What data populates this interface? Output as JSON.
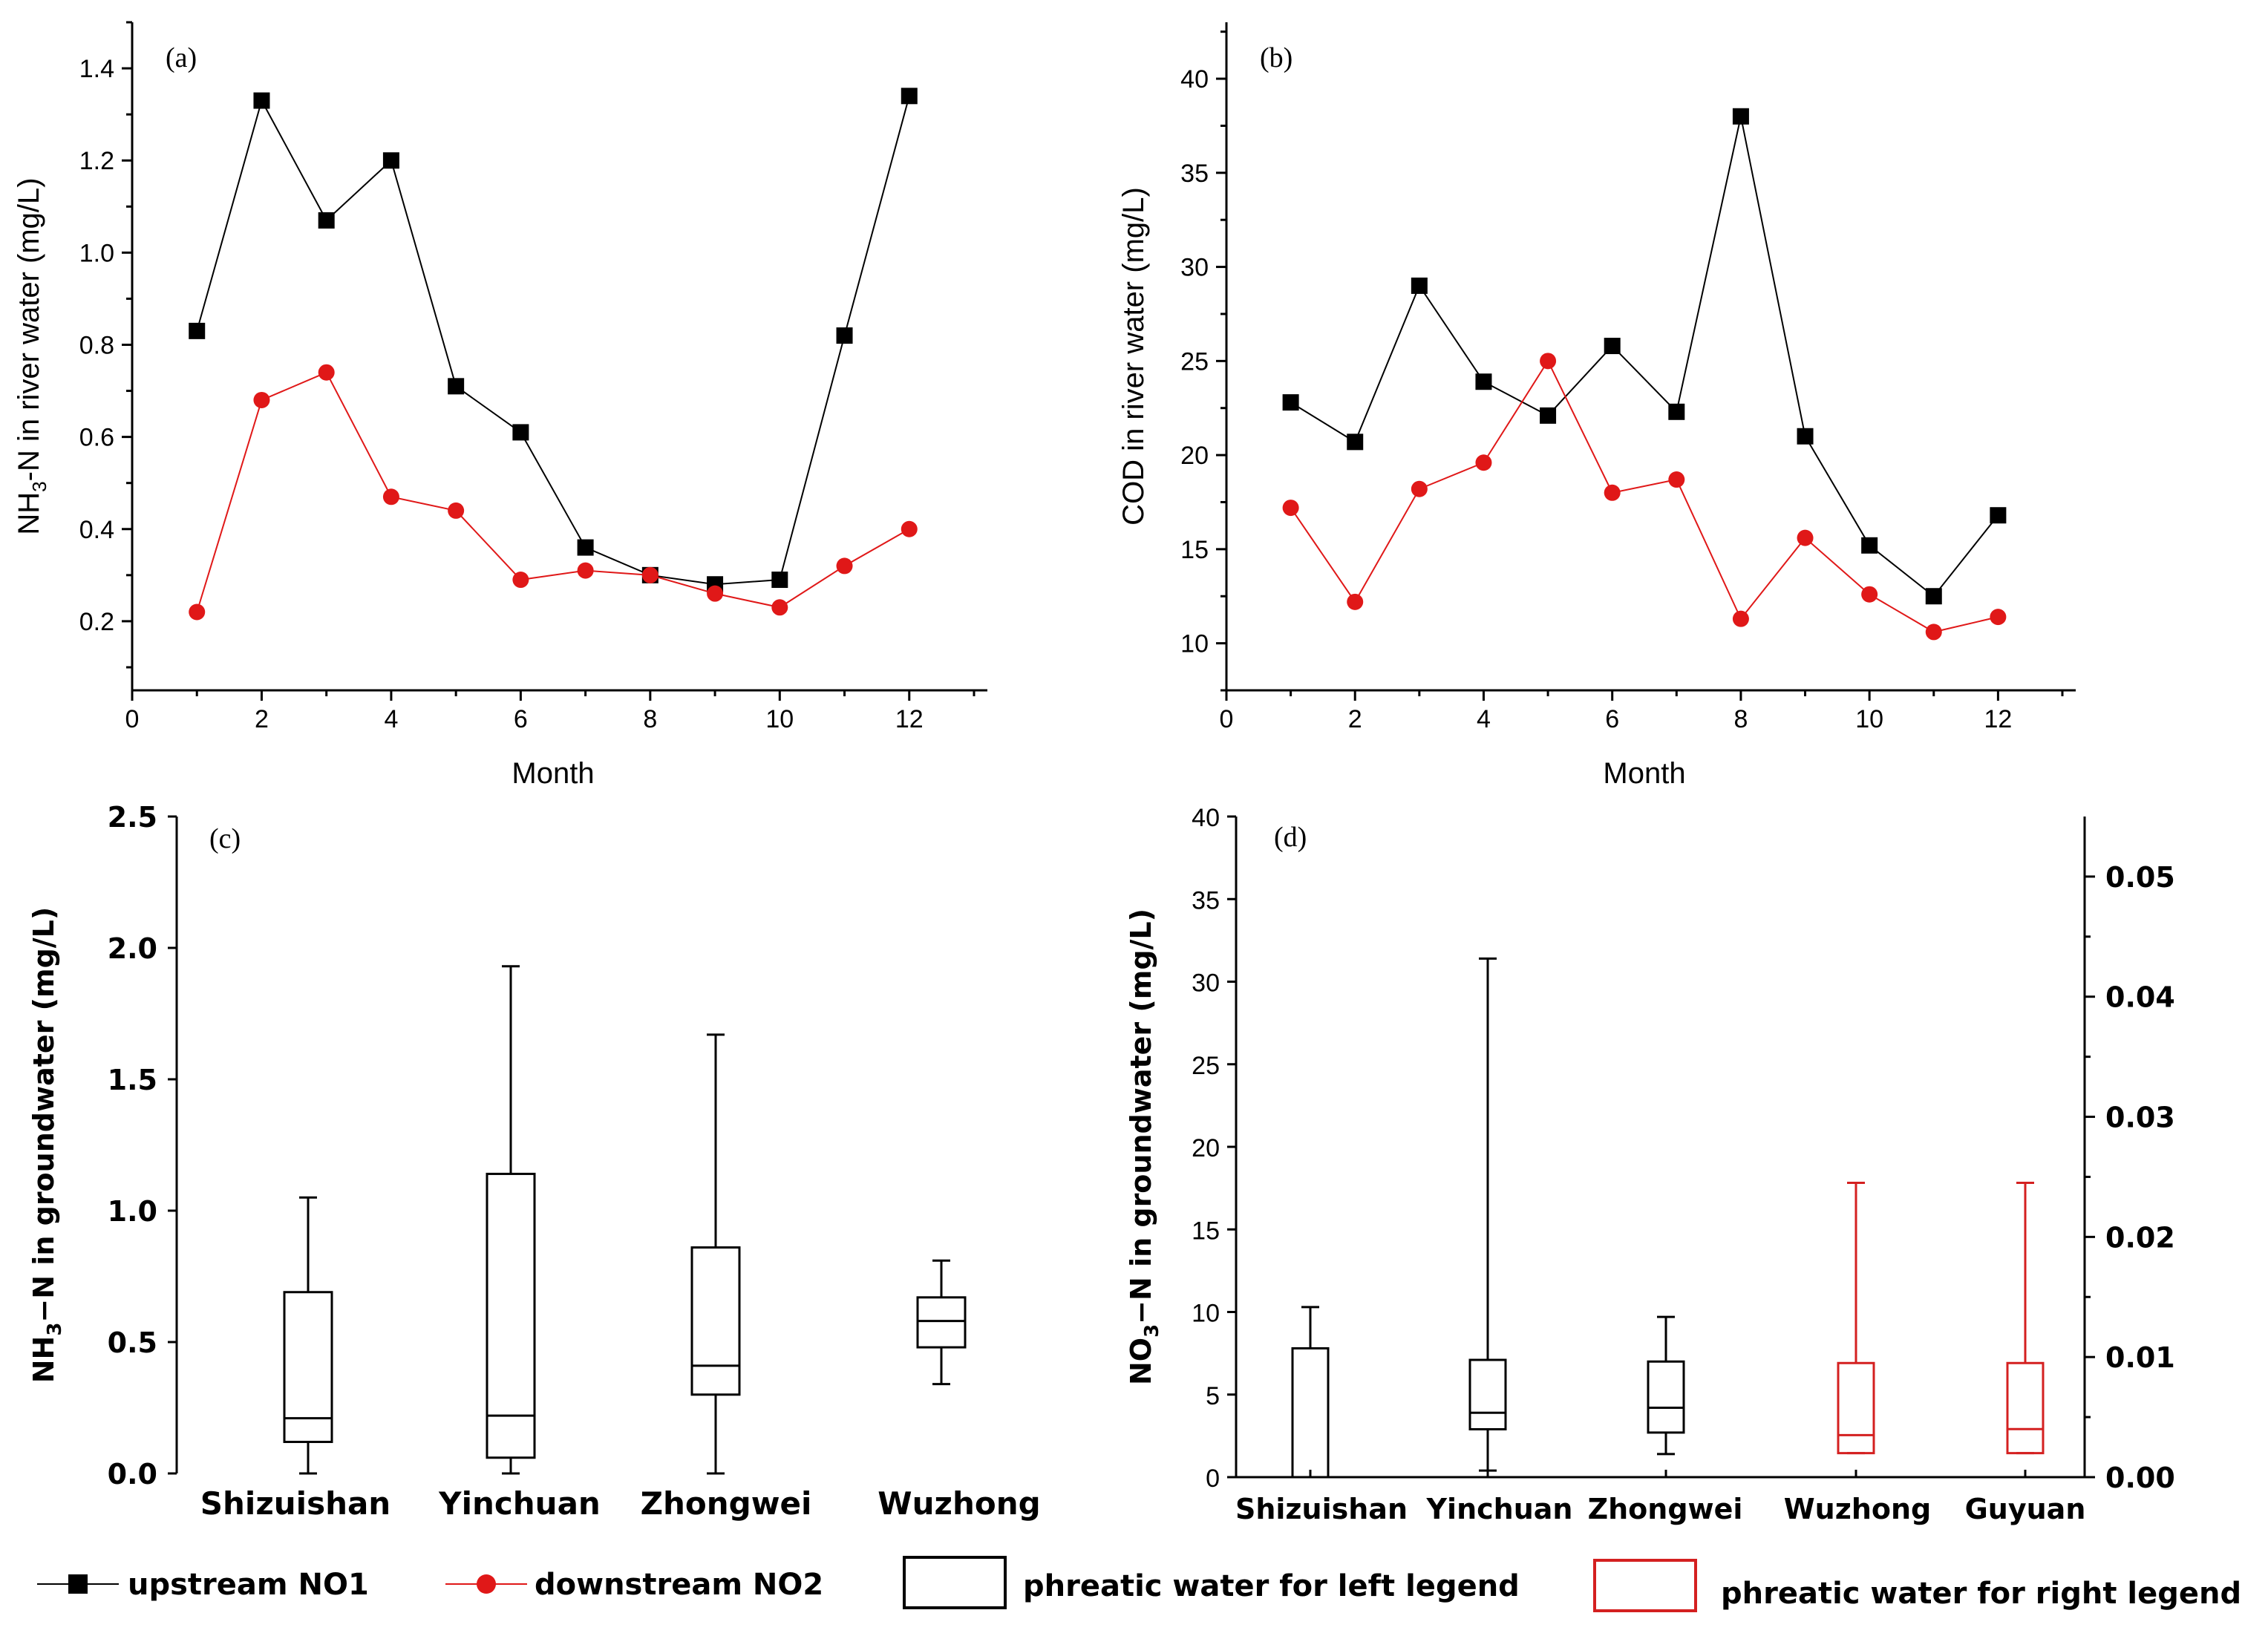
{
  "colors": {
    "upstream": "#000000",
    "downstream": "#e01818",
    "box_left": "#000000",
    "box_right": "#d42020"
  },
  "legend": {
    "upstream": "upstream NO1",
    "downstream": "downstream NO2",
    "box_left": "phreatic water for left legend",
    "box_right": "phreatic water for right legend"
  },
  "chart_data": [
    {
      "id": "a",
      "panel_label": "(a)",
      "type": "line",
      "xlabel": "Month",
      "ylabel_main": "NH",
      "ylabel_sub": "3",
      "ylabel_rest": "-N in river water (mg/L)",
      "xlim": [
        0,
        13
      ],
      "ylim": [
        0.05,
        1.5
      ],
      "xticks": [
        "0",
        "2",
        "4",
        "6",
        "8",
        "10",
        "12"
      ],
      "yticks": [
        "0.2",
        "0.4",
        "0.6",
        "0.8",
        "1.0",
        "1.2",
        "1.4"
      ],
      "x": [
        1,
        2,
        3,
        4,
        5,
        6,
        7,
        8,
        9,
        10,
        11,
        12
      ],
      "series": [
        {
          "name": "upstream NO1",
          "values": [
            0.83,
            1.33,
            1.07,
            1.2,
            0.71,
            0.61,
            0.36,
            0.3,
            0.28,
            0.29,
            0.82,
            1.34
          ]
        },
        {
          "name": "downstream NO2",
          "values": [
            0.22,
            0.68,
            0.74,
            0.47,
            0.44,
            0.29,
            0.31,
            0.3,
            0.26,
            0.23,
            0.32,
            0.4
          ]
        }
      ]
    },
    {
      "id": "b",
      "panel_label": "(b)",
      "type": "line",
      "xlabel": "Month",
      "ylabel": "COD in river water (mg/L)",
      "xlim": [
        0,
        13
      ],
      "ylim": [
        7.5,
        43
      ],
      "xticks": [
        "0",
        "2",
        "4",
        "6",
        "8",
        "10",
        "12"
      ],
      "yticks": [
        "10",
        "15",
        "20",
        "25",
        "30",
        "35",
        "40"
      ],
      "x": [
        1,
        2,
        3,
        4,
        5,
        6,
        7,
        8,
        9,
        10,
        11,
        12
      ],
      "series": [
        {
          "name": "upstream NO1",
          "values": [
            22.8,
            20.7,
            29.0,
            23.9,
            22.1,
            25.8,
            22.3,
            38.0,
            21.0,
            15.2,
            12.5,
            16.8
          ]
        },
        {
          "name": "downstream NO2",
          "values": [
            17.2,
            12.2,
            18.2,
            19.6,
            25.0,
            18.0,
            18.7,
            11.3,
            15.6,
            12.6,
            10.6,
            11.4
          ]
        }
      ]
    },
    {
      "id": "c",
      "panel_label": "(c)",
      "type": "box",
      "ylabel_main": "NH",
      "ylabel_sub": "3",
      "ylabel_rest": "−N in groundwater (mg/L)",
      "ylim": [
        0,
        2.5
      ],
      "yticks": [
        "0.0",
        "0.5",
        "1.0",
        "1.5",
        "2.0",
        "2.5"
      ],
      "categories": [
        "Shizuishan",
        "Yinchuan",
        "Zhongwei",
        "Wuzhong"
      ],
      "boxes": [
        {
          "min": 0.0,
          "q1": 0.12,
          "median": 0.21,
          "q3": 0.69,
          "max": 1.05
        },
        {
          "min": 0.0,
          "q1": 0.06,
          "median": 0.22,
          "q3": 1.14,
          "max": 1.93
        },
        {
          "min": 0.0,
          "q1": 0.3,
          "median": 0.41,
          "q3": 0.86,
          "max": 1.67
        },
        {
          "min": 0.34,
          "q1": 0.48,
          "median": 0.58,
          "q3": 0.67,
          "max": 0.81
        }
      ]
    },
    {
      "id": "d",
      "panel_label": "(d)",
      "type": "box",
      "ylabel_main": "NO",
      "ylabel_sub": "3",
      "ylabel_rest": "−N in groundwater (mg/L)",
      "ylim_left": [
        0,
        40
      ],
      "ylim_right": [
        0,
        0.055
      ],
      "yticks_left": [
        "0",
        "5",
        "10",
        "15",
        "20",
        "25",
        "30",
        "35",
        "40"
      ],
      "yticks_right": [
        "0.00",
        "0.01",
        "0.02",
        "0.03",
        "0.04",
        "0.05"
      ],
      "categories": [
        "Shizuishan",
        "Yinchuan",
        "Zhongwei",
        "Wuzhong",
        "Guyuan"
      ],
      "boxes": [
        {
          "axis": "left",
          "min": 0.0,
          "q1": 0.0,
          "median": 0.0,
          "q3": 7.8,
          "max": 10.3
        },
        {
          "axis": "left",
          "min": 0.4,
          "q1": 2.9,
          "median": 3.9,
          "q3": 7.1,
          "max": 31.4
        },
        {
          "axis": "left",
          "min": 1.4,
          "q1": 2.7,
          "median": 4.2,
          "q3": 7.0,
          "max": 9.7
        },
        {
          "axis": "right",
          "min": 0.002,
          "q1": 0.002,
          "median": 0.0035,
          "q3": 0.0095,
          "max": 0.0245
        },
        {
          "axis": "right",
          "min": 0.002,
          "q1": 0.002,
          "median": 0.004,
          "q3": 0.0095,
          "max": 0.0245
        }
      ]
    }
  ]
}
